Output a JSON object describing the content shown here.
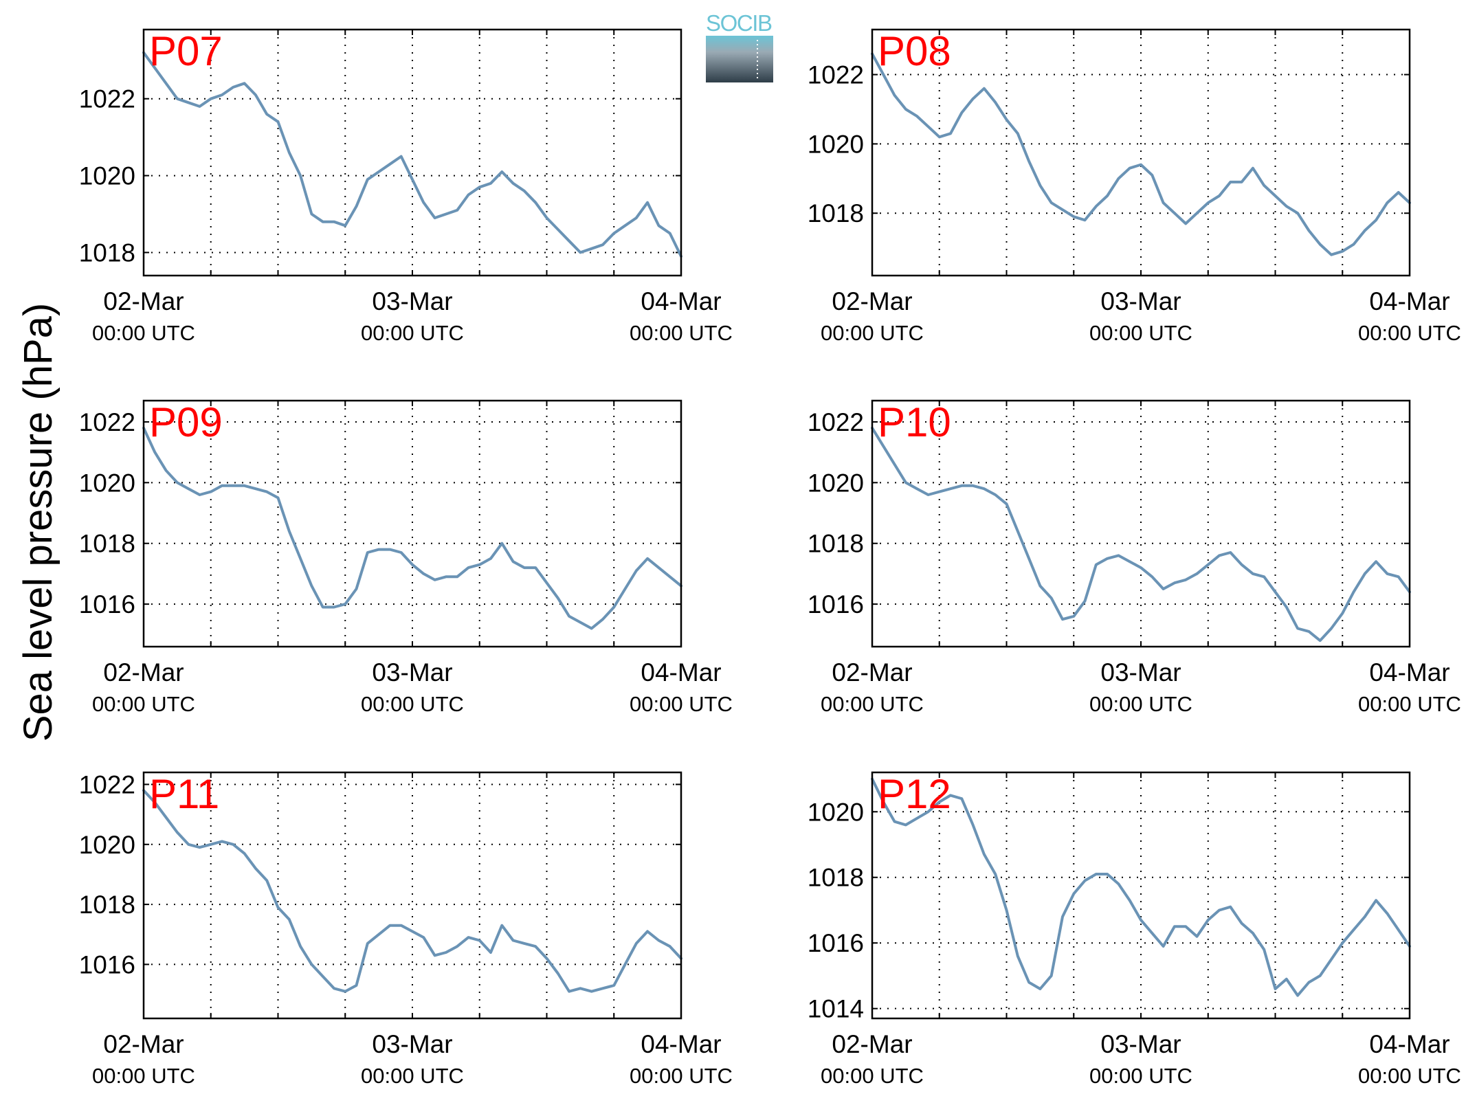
{
  "ylabel": "Sea level pressure (hPa)",
  "logo": {
    "text": "SOCIB",
    "top_color": "#6cc4d6",
    "bottom_color": "#2e3d48"
  },
  "colors": {
    "line": "#6a93b5",
    "station_label": "#ff0000",
    "grid": "#000000"
  },
  "x_ticks": [
    {
      "date": "02-Mar",
      "time": "00:00 UTC"
    },
    {
      "date": "03-Mar",
      "time": "00:00 UTC"
    },
    {
      "date": "04-Mar",
      "time": "00:00 UTC"
    }
  ],
  "chart_data": [
    {
      "type": "line",
      "station": "P07",
      "xlim": [
        "02-Mar 00:00 UTC",
        "04-Mar 00:00 UTC"
      ],
      "x_unit": "hours since 02-Mar 00:00 UTC",
      "ylim": [
        1017.4,
        1023.8
      ],
      "yticks": [
        1018,
        1020,
        1022
      ],
      "grid": true,
      "x": [
        0,
        1,
        2,
        3,
        4,
        5,
        6,
        7,
        8,
        9,
        10,
        11,
        12,
        13,
        14,
        15,
        16,
        17,
        18,
        19,
        20,
        21,
        22,
        23,
        24,
        25,
        26,
        27,
        28,
        29,
        30,
        31,
        32,
        33,
        34,
        35,
        36,
        37,
        38,
        39,
        40,
        41,
        42,
        43,
        44,
        45,
        46,
        47,
        48
      ],
      "values": [
        1023.2,
        1022.8,
        1022.4,
        1022.0,
        1021.9,
        1021.8,
        1022.0,
        1022.1,
        1022.3,
        1022.4,
        1022.1,
        1021.6,
        1021.4,
        1020.6,
        1020.0,
        1019.0,
        1018.8,
        1018.8,
        1018.7,
        1019.2,
        1019.9,
        1020.1,
        1020.3,
        1020.5,
        1019.9,
        1019.3,
        1018.9,
        1019.0,
        1019.1,
        1019.5,
        1019.7,
        1019.8,
        1020.1,
        1019.8,
        1019.6,
        1019.3,
        1018.9,
        1018.6,
        1018.3,
        1018.0,
        1018.1,
        1018.2,
        1018.5,
        1018.7,
        1018.9,
        1019.3,
        1018.7,
        1018.5,
        1017.9
      ]
    },
    {
      "type": "line",
      "station": "P08",
      "xlim": [
        "02-Mar 00:00 UTC",
        "04-Mar 00:00 UTC"
      ],
      "x_unit": "hours since 02-Mar 00:00 UTC",
      "ylim": [
        1016.2,
        1023.3
      ],
      "yticks": [
        1018,
        1020,
        1022
      ],
      "grid": true,
      "x": [
        0,
        1,
        2,
        3,
        4,
        5,
        6,
        7,
        8,
        9,
        10,
        11,
        12,
        13,
        14,
        15,
        16,
        17,
        18,
        19,
        20,
        21,
        22,
        23,
        24,
        25,
        26,
        27,
        28,
        29,
        30,
        31,
        32,
        33,
        34,
        35,
        36,
        37,
        38,
        39,
        40,
        41,
        42,
        43,
        44,
        45,
        46,
        47,
        48
      ],
      "values": [
        1022.6,
        1022.0,
        1021.4,
        1021.0,
        1020.8,
        1020.5,
        1020.2,
        1020.3,
        1020.9,
        1021.3,
        1021.6,
        1021.2,
        1020.7,
        1020.3,
        1019.5,
        1018.8,
        1018.3,
        1018.1,
        1017.9,
        1017.8,
        1018.2,
        1018.5,
        1019.0,
        1019.3,
        1019.4,
        1019.1,
        1018.3,
        1018.0,
        1017.7,
        1018.0,
        1018.3,
        1018.5,
        1018.9,
        1018.9,
        1019.3,
        1018.8,
        1018.5,
        1018.2,
        1018.0,
        1017.5,
        1017.1,
        1016.8,
        1016.9,
        1017.1,
        1017.5,
        1017.8,
        1018.3,
        1018.6,
        1018.3
      ]
    },
    {
      "type": "line",
      "station": "P09",
      "xlim": [
        "02-Mar 00:00 UTC",
        "04-Mar 00:00 UTC"
      ],
      "x_unit": "hours since 02-Mar 00:00 UTC",
      "ylim": [
        1014.6,
        1022.7
      ],
      "yticks": [
        1016,
        1018,
        1020,
        1022
      ],
      "grid": true,
      "x": [
        0,
        1,
        2,
        3,
        4,
        5,
        6,
        7,
        8,
        9,
        10,
        11,
        12,
        13,
        14,
        15,
        16,
        17,
        18,
        19,
        20,
        21,
        22,
        23,
        24,
        25,
        26,
        27,
        28,
        29,
        30,
        31,
        32,
        33,
        34,
        35,
        36,
        37,
        38,
        39,
        40,
        41,
        42,
        43,
        44,
        45,
        46,
        47,
        48
      ],
      "values": [
        1021.8,
        1021.0,
        1020.4,
        1020.0,
        1019.8,
        1019.6,
        1019.7,
        1019.9,
        1019.9,
        1019.9,
        1019.8,
        1019.7,
        1019.5,
        1018.4,
        1017.5,
        1016.6,
        1015.9,
        1015.9,
        1016.0,
        1016.5,
        1017.7,
        1017.8,
        1017.8,
        1017.7,
        1017.3,
        1017.0,
        1016.8,
        1016.9,
        1016.9,
        1017.2,
        1017.3,
        1017.5,
        1018.0,
        1017.4,
        1017.2,
        1017.2,
        1016.7,
        1016.2,
        1015.6,
        1015.4,
        1015.2,
        1015.5,
        1015.9,
        1016.5,
        1017.1,
        1017.5,
        1017.2,
        1016.9,
        1016.6
      ]
    },
    {
      "type": "line",
      "station": "P10",
      "xlim": [
        "02-Mar 00:00 UTC",
        "04-Mar 00:00 UTC"
      ],
      "x_unit": "hours since 02-Mar 00:00 UTC",
      "ylim": [
        1014.6,
        1022.7
      ],
      "yticks": [
        1016,
        1018,
        1020,
        1022
      ],
      "grid": true,
      "x": [
        0,
        1,
        2,
        3,
        4,
        5,
        6,
        7,
        8,
        9,
        10,
        11,
        12,
        13,
        14,
        15,
        16,
        17,
        18,
        19,
        20,
        21,
        22,
        23,
        24,
        25,
        26,
        27,
        28,
        29,
        30,
        31,
        32,
        33,
        34,
        35,
        36,
        37,
        38,
        39,
        40,
        41,
        42,
        43,
        44,
        45,
        46,
        47,
        48
      ],
      "values": [
        1021.8,
        1021.2,
        1020.6,
        1020.0,
        1019.8,
        1019.6,
        1019.7,
        1019.8,
        1019.9,
        1019.9,
        1019.8,
        1019.6,
        1019.3,
        1018.4,
        1017.5,
        1016.6,
        1016.2,
        1015.5,
        1015.6,
        1016.1,
        1017.3,
        1017.5,
        1017.6,
        1017.4,
        1017.2,
        1016.9,
        1016.5,
        1016.7,
        1016.8,
        1017.0,
        1017.3,
        1017.6,
        1017.7,
        1017.3,
        1017.0,
        1016.9,
        1016.4,
        1015.9,
        1015.2,
        1015.1,
        1014.8,
        1015.2,
        1015.7,
        1016.4,
        1017.0,
        1017.4,
        1017.0,
        1016.9,
        1016.4
      ]
    },
    {
      "type": "line",
      "station": "P11",
      "xlim": [
        "02-Mar 00:00 UTC",
        "04-Mar 00:00 UTC"
      ],
      "x_unit": "hours since 02-Mar 00:00 UTC",
      "ylim": [
        1014.2,
        1022.4
      ],
      "yticks": [
        1016,
        1018,
        1020,
        1022
      ],
      "grid": true,
      "x": [
        0,
        1,
        2,
        3,
        4,
        5,
        6,
        7,
        8,
        9,
        10,
        11,
        12,
        13,
        14,
        15,
        16,
        17,
        18,
        19,
        20,
        21,
        22,
        23,
        24,
        25,
        26,
        27,
        28,
        29,
        30,
        31,
        32,
        33,
        34,
        35,
        36,
        37,
        38,
        39,
        40,
        41,
        42,
        43,
        44,
        45,
        46,
        47,
        48
      ],
      "values": [
        1021.8,
        1021.4,
        1020.9,
        1020.4,
        1020.0,
        1019.9,
        1020.0,
        1020.1,
        1020.0,
        1019.7,
        1019.2,
        1018.8,
        1017.9,
        1017.5,
        1016.6,
        1016.0,
        1015.6,
        1015.2,
        1015.1,
        1015.3,
        1016.7,
        1017.0,
        1017.3,
        1017.3,
        1017.1,
        1016.9,
        1016.3,
        1016.4,
        1016.6,
        1016.9,
        1016.8,
        1016.4,
        1017.3,
        1016.8,
        1016.7,
        1016.6,
        1016.2,
        1015.7,
        1015.1,
        1015.2,
        1015.1,
        1015.2,
        1015.3,
        1016.0,
        1016.7,
        1017.1,
        1016.8,
        1016.6,
        1016.2
      ]
    },
    {
      "type": "line",
      "station": "P12",
      "xlim": [
        "02-Mar 00:00 UTC",
        "04-Mar 00:00 UTC"
      ],
      "x_unit": "hours since 02-Mar 00:00 UTC",
      "ylim": [
        1013.7,
        1021.2
      ],
      "yticks": [
        1014,
        1016,
        1018,
        1020
      ],
      "grid": true,
      "x": [
        0,
        1,
        2,
        3,
        4,
        5,
        6,
        7,
        8,
        9,
        10,
        11,
        12,
        13,
        14,
        15,
        16,
        17,
        18,
        19,
        20,
        21,
        22,
        23,
        24,
        25,
        26,
        27,
        28,
        29,
        30,
        31,
        32,
        33,
        34,
        35,
        36,
        37,
        38,
        39,
        40,
        41,
        42,
        43,
        44,
        45,
        46,
        47,
        48
      ],
      "values": [
        1021.0,
        1020.3,
        1019.7,
        1019.6,
        1019.8,
        1020.0,
        1020.3,
        1020.5,
        1020.4,
        1019.6,
        1018.7,
        1018.1,
        1017.0,
        1015.6,
        1014.8,
        1014.6,
        1015.0,
        1016.8,
        1017.5,
        1017.9,
        1018.1,
        1018.1,
        1017.8,
        1017.3,
        1016.7,
        1016.3,
        1015.9,
        1016.5,
        1016.5,
        1016.2,
        1016.7,
        1017.0,
        1017.1,
        1016.6,
        1016.3,
        1015.8,
        1014.6,
        1014.9,
        1014.4,
        1014.8,
        1015.0,
        1015.5,
        1016.0,
        1016.4,
        1016.8,
        1017.3,
        1016.9,
        1016.4,
        1015.9
      ]
    }
  ]
}
